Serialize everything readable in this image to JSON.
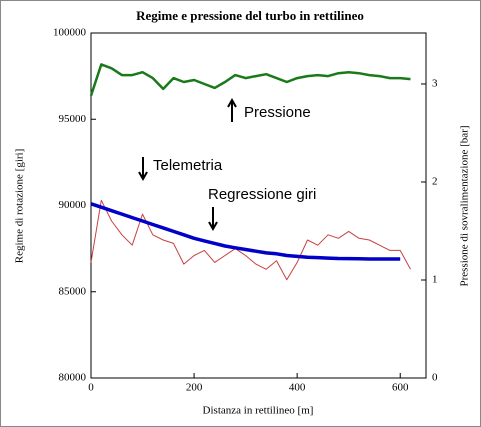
{
  "chart_data": {
    "type": "line",
    "title": "Regime e pressione del turbo in rettilineo",
    "x_label": "Distanza in rettilineo  [m]",
    "y_label": "Regime di rotazione  [giri]",
    "y2_label": "Pressione di sovralimentazione  [bar]",
    "x": [
      0,
      20,
      40,
      60,
      80,
      100,
      120,
      140,
      160,
      180,
      200,
      220,
      240,
      260,
      280,
      300,
      320,
      340,
      360,
      380,
      400,
      420,
      440,
      460,
      480,
      500,
      520,
      540,
      560,
      580,
      600,
      620
    ],
    "series": [
      {
        "name": "Pressione",
        "color": "#1a7a1a",
        "axis": "y2",
        "values": [
          2.88,
          3.2,
          3.16,
          3.09,
          3.09,
          3.12,
          3.06,
          2.95,
          3.06,
          3.02,
          3.04,
          3.0,
          2.96,
          3.02,
          3.09,
          3.06,
          3.08,
          3.1,
          3.06,
          3.02,
          3.06,
          3.08,
          3.09,
          3.08,
          3.11,
          3.12,
          3.11,
          3.09,
          3.08,
          3.06,
          3.06,
          3.05
        ]
      },
      {
        "name": "Telemetria",
        "color": "#c84040",
        "values": [
          86700,
          90300,
          89100,
          88300,
          87700,
          89500,
          88300,
          88000,
          87800,
          86600,
          87100,
          87400,
          86700,
          87100,
          87500,
          87100,
          86600,
          86300,
          86800,
          85700,
          86700,
          88000,
          87700,
          88300,
          88100,
          88500,
          88100,
          88000,
          87700,
          87400,
          87400,
          86300
        ]
      },
      {
        "name": "Regressione giri",
        "color": "#0000c8",
        "values": [
          90100,
          89900,
          89700,
          89500,
          89300,
          89100,
          88900,
          88700,
          88500,
          88300,
          88100,
          87950,
          87800,
          87650,
          87550,
          87450,
          87350,
          87250,
          87200,
          87100,
          87050,
          87000,
          86980,
          86950,
          86930,
          86920,
          86910,
          86900,
          86900,
          86900,
          86900,
          null
        ]
      }
    ],
    "xlim": [
      0,
      650
    ],
    "xticks": [
      0,
      200,
      400,
      600
    ],
    "ylim": [
      80000,
      100000
    ],
    "yticks": [
      80000,
      85000,
      90000,
      95000,
      100000
    ],
    "y2lim": [
      0,
      3.52
    ],
    "y2ticks": [
      0,
      1,
      2,
      3
    ],
    "grid": false
  }
}
